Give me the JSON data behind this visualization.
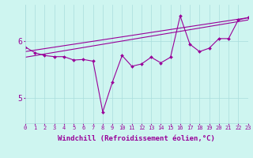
{
  "xlabel": "Windchill (Refroidissement éolien,°C)",
  "background_color": "#cef5f0",
  "line_color": "#990099",
  "x_data": [
    0,
    1,
    2,
    3,
    4,
    5,
    6,
    7,
    8,
    9,
    10,
    11,
    12,
    13,
    14,
    15,
    16,
    17,
    18,
    19,
    20,
    21,
    22,
    23
  ],
  "y_data": [
    5.9,
    5.8,
    5.75,
    5.73,
    5.73,
    5.67,
    5.68,
    5.65,
    4.75,
    5.28,
    5.75,
    5.56,
    5.6,
    5.72,
    5.62,
    5.72,
    6.45,
    5.95,
    5.82,
    5.88,
    6.05,
    6.05,
    6.38,
    6.42
  ],
  "trend1_x": [
    0,
    23
  ],
  "trend1_y": [
    5.72,
    6.38
  ],
  "trend2_x": [
    0,
    23
  ],
  "trend2_y": [
    5.82,
    6.42
  ],
  "xlim": [
    0,
    23
  ],
  "ylim": [
    4.55,
    6.65
  ],
  "yticks": [
    5,
    6
  ],
  "xticks": [
    0,
    1,
    2,
    3,
    4,
    5,
    6,
    7,
    8,
    9,
    10,
    11,
    12,
    13,
    14,
    15,
    16,
    17,
    18,
    19,
    20,
    21,
    22,
    23
  ],
  "grid_color": "#aadddd",
  "tick_fontsize": 5,
  "xlabel_fontsize": 6.5
}
